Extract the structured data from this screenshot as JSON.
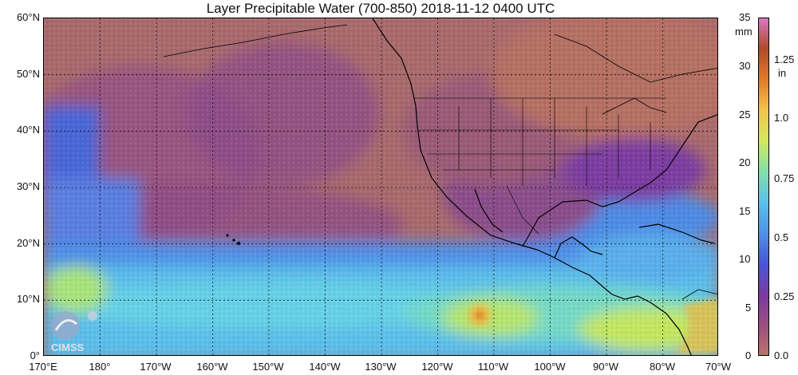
{
  "title": "Layer Precipitable Water (700-850)  2018-11-12 0400 UTC",
  "logo_text": "CIMSS",
  "lat_labels": [
    "60°N",
    "50°N",
    "40°N",
    "30°N",
    "20°N",
    "10°N",
    "0°"
  ],
  "lon_labels": [
    "170°E",
    "180°",
    "170°W",
    "160°W",
    "150°W",
    "140°W",
    "130°W",
    "120°W",
    "110°W",
    "100°W",
    "90°W",
    "80°W",
    "70°W"
  ],
  "colorbar": {
    "mm_unit": "mm",
    "in_unit": "in",
    "mm_ticks": [
      "35",
      "30",
      "25",
      "20",
      "15",
      "10",
      "5",
      "0"
    ],
    "in_ticks": [
      "1.25",
      "1.0",
      "0.75",
      "0.5",
      "0.25",
      "0.0"
    ],
    "colors": [
      "#b8736a",
      "#9a4e80",
      "#7a3aa0",
      "#4a55d8",
      "#4f8fe6",
      "#59c0ea",
      "#86e0a8",
      "#d6e85a",
      "#f2c24a",
      "#e07a28",
      "#b04a2a",
      "#d879c3"
    ]
  }
}
